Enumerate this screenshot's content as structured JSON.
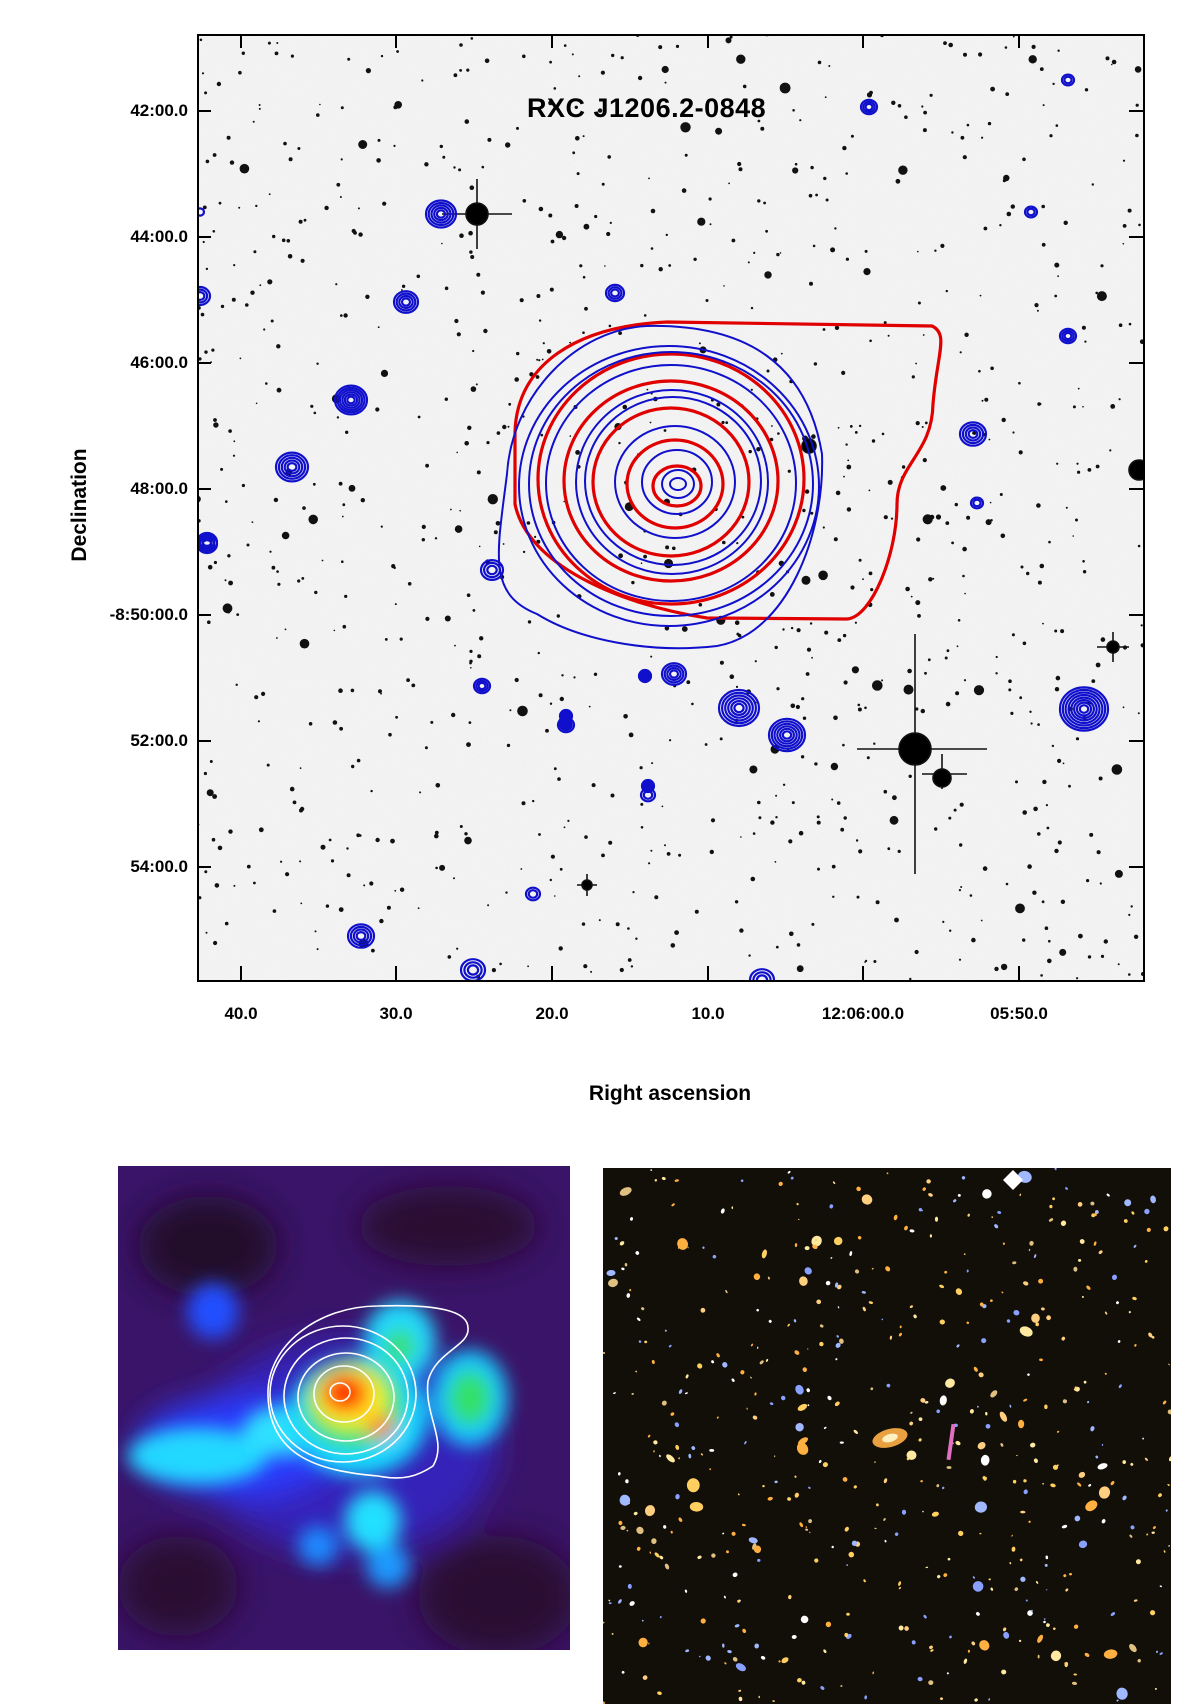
{
  "main_panel": {
    "title": "RXC J1206.2-0848",
    "xlabel": "Right ascension",
    "ylabel": "Declination",
    "ra_ticks": [
      "40.0",
      "30.0",
      "20.0",
      "10.0",
      "12:06:00.0",
      "05:50.0"
    ],
    "dec_ticks": [
      "42:00.0",
      "44:00.0",
      "46:00.0",
      "48:00.0",
      "-8:50:00.0",
      "52:00.0",
      "54:00.0"
    ],
    "colors": {
      "xray_contours": "#e00000",
      "radio_contours": "#1010cc",
      "background": "#f2f2f2"
    }
  },
  "xray_panel": {
    "colormap": [
      "#2a0a2a",
      "#4a1a9a",
      "#1a3aff",
      "#20e0ff",
      "#20e060",
      "#ffff20",
      "#ff2000"
    ],
    "contour_color": "#ffffff"
  },
  "optical_panel": {
    "background": "#120e08"
  }
}
